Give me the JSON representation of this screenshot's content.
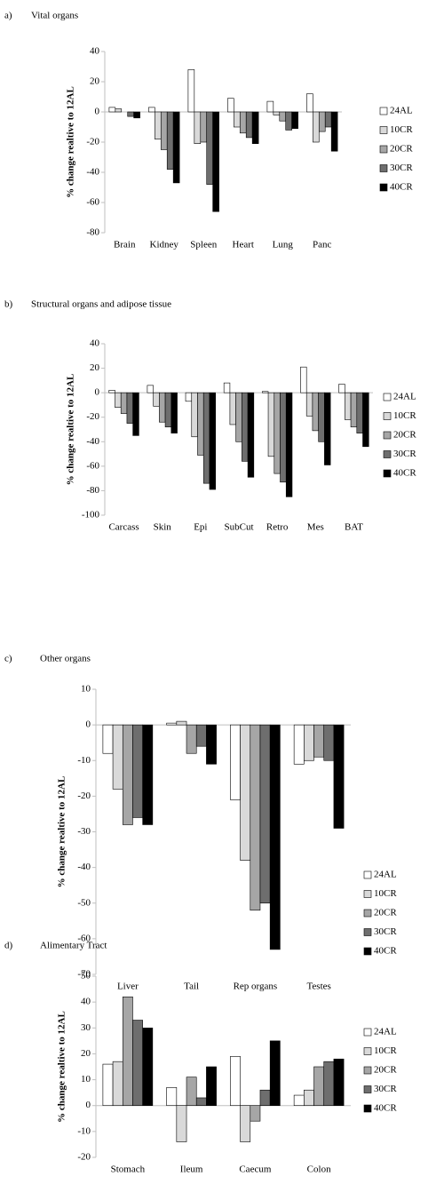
{
  "chart_data": [
    {
      "type": "bar",
      "label": "a)",
      "title": "Vital organs",
      "y_label": "% change realtive to 12AL",
      "categories": [
        "Brain",
        "Kidney",
        "Spleen",
        "Heart",
        "Lung",
        "Panc"
      ],
      "series": [
        {
          "name": "24AL",
          "color": "#ffffff",
          "values": [
            3,
            3,
            28,
            9,
            7,
            12
          ]
        },
        {
          "name": "10CR",
          "color": "#d9d9d9",
          "values": [
            2,
            -18,
            -21,
            -10,
            -2,
            -20
          ]
        },
        {
          "name": "20CR",
          "color": "#a6a6a6",
          "values": [
            0,
            -25,
            -20,
            -14,
            -6,
            -13
          ]
        },
        {
          "name": "30CR",
          "color": "#6e6e6e",
          "values": [
            -3,
            -38,
            -48,
            -17,
            -12,
            -10
          ]
        },
        {
          "name": "40CR",
          "color": "#000000",
          "values": [
            -4,
            -47,
            -66,
            -21,
            -11,
            -26
          ]
        }
      ],
      "ylim": [
        -80,
        40
      ],
      "yticks": [
        -80,
        -60,
        -40,
        -20,
        0,
        20,
        40
      ]
    },
    {
      "type": "bar",
      "label": "b)",
      "title": "Structural organs and adipose tissue",
      "y_label": "% change realtive to 12AL",
      "categories": [
        "Carcass",
        "Skin",
        "Epi",
        "SubCut",
        "Retro",
        "Mes",
        "BAT"
      ],
      "series": [
        {
          "name": "24AL",
          "color": "#ffffff",
          "values": [
            2,
            6,
            -7,
            8,
            1,
            21,
            7
          ]
        },
        {
          "name": "10CR",
          "color": "#d9d9d9",
          "values": [
            -12,
            -11,
            -36,
            -26,
            -52,
            -19,
            -22
          ]
        },
        {
          "name": "20CR",
          "color": "#a6a6a6",
          "values": [
            -17,
            -24,
            -51,
            -40,
            -66,
            -31,
            -28
          ]
        },
        {
          "name": "30CR",
          "color": "#6e6e6e",
          "values": [
            -25,
            -28,
            -74,
            -56,
            -73,
            -40,
            -33
          ]
        },
        {
          "name": "40CR",
          "color": "#000000",
          "values": [
            -35,
            -33,
            -79,
            -69,
            -85,
            -59,
            -44
          ]
        }
      ],
      "ylim": [
        -100,
        40
      ],
      "yticks": [
        -100,
        -80,
        -60,
        -40,
        -20,
        0,
        20,
        40
      ]
    },
    {
      "type": "bar",
      "label": "c)",
      "title": "Other organs",
      "y_label": "% change realtive to 12AL",
      "categories": [
        "Liver",
        "Tail",
        "Rep organs",
        "Testes"
      ],
      "series": [
        {
          "name": "24AL",
          "color": "#ffffff",
          "values": [
            -8,
            0.5,
            -21,
            -11
          ]
        },
        {
          "name": "10CR",
          "color": "#d9d9d9",
          "values": [
            -18,
            1,
            -38,
            -10
          ]
        },
        {
          "name": "20CR",
          "color": "#a6a6a6",
          "values": [
            -28,
            -8,
            -52,
            -9
          ]
        },
        {
          "name": "30CR",
          "color": "#6e6e6e",
          "values": [
            -26,
            -6,
            -50,
            -10
          ]
        },
        {
          "name": "40CR",
          "color": "#000000",
          "values": [
            -28,
            -11,
            -63,
            -29
          ]
        }
      ],
      "ylim": [
        -70,
        10
      ],
      "yticks": [
        -70,
        -60,
        -50,
        -40,
        -30,
        -20,
        -10,
        0,
        10
      ]
    },
    {
      "type": "bar",
      "label": "d)",
      "title": "Alimentary Tract",
      "y_label": "% change realtive to 12AL",
      "categories": [
        "Stomach",
        "Ileum",
        "Caecum",
        "Colon"
      ],
      "series": [
        {
          "name": "24AL",
          "color": "#ffffff",
          "values": [
            16,
            7,
            19,
            4
          ]
        },
        {
          "name": "10CR",
          "color": "#d9d9d9",
          "values": [
            17,
            -14,
            -14,
            6
          ]
        },
        {
          "name": "20CR",
          "color": "#a6a6a6",
          "values": [
            42,
            11,
            -6,
            15
          ]
        },
        {
          "name": "30CR",
          "color": "#6e6e6e",
          "values": [
            33,
            3,
            6,
            17
          ]
        },
        {
          "name": "40CR",
          "color": "#000000",
          "values": [
            30,
            15,
            25,
            18
          ]
        }
      ],
      "ylim": [
        -20,
        50
      ],
      "yticks": [
        -20,
        -10,
        0,
        10,
        20,
        30,
        40,
        50
      ]
    }
  ]
}
